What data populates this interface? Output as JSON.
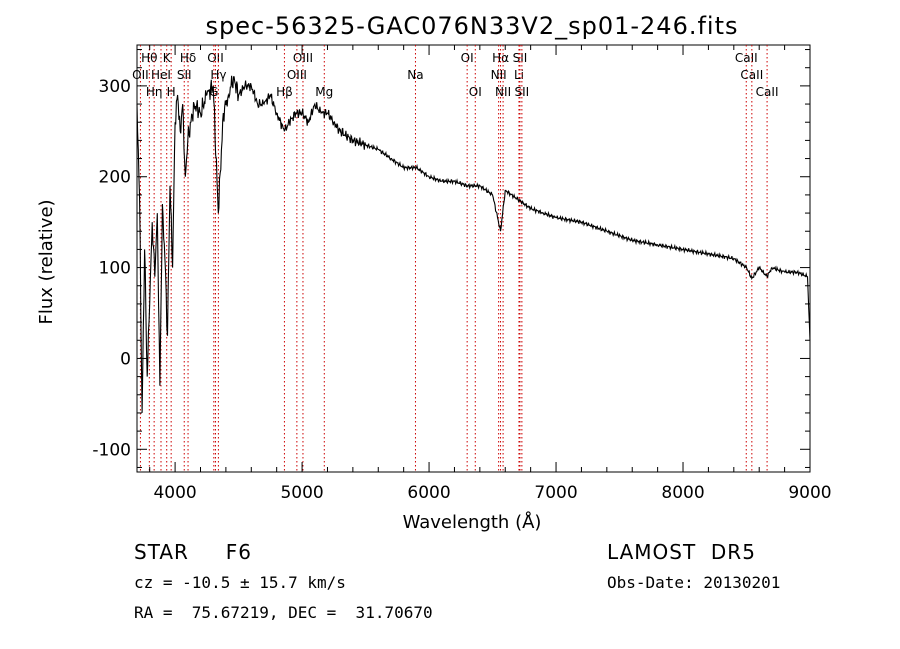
{
  "chart_data": {
    "type": "line",
    "title": "spec-56325-GAC076N33V2_sp01-246.fits",
    "xlabel": "Wavelength (Å)",
    "ylabel": "Flux (relative)",
    "xlim": [
      3700,
      9000
    ],
    "ylim": [
      -125,
      345
    ],
    "xticks": [
      4000,
      5000,
      6000,
      7000,
      8000,
      9000
    ],
    "yticks": [
      -100,
      0,
      100,
      200,
      300
    ],
    "grid": false,
    "spectrum": {
      "x": [
        3700,
        3720,
        3740,
        3760,
        3780,
        3800,
        3820,
        3840,
        3860,
        3880,
        3900,
        3920,
        3940,
        3960,
        3980,
        4000,
        4020,
        4040,
        4060,
        4080,
        4100,
        4150,
        4200,
        4250,
        4300,
        4340,
        4380,
        4420,
        4460,
        4500,
        4550,
        4600,
        4650,
        4700,
        4750,
        4800,
        4861,
        4900,
        4950,
        5000,
        5050,
        5100,
        5150,
        5200,
        5250,
        5300,
        5400,
        5500,
        5600,
        5700,
        5800,
        5900,
        6000,
        6100,
        6200,
        6300,
        6400,
        6500,
        6563,
        6600,
        6700,
        6800,
        6900,
        7000,
        7200,
        7400,
        7600,
        7800,
        8000,
        8200,
        8400,
        8500,
        8542,
        8600,
        8662,
        8700,
        8800,
        8900,
        8980,
        9000
      ],
      "y": [
        280,
        180,
        -60,
        120,
        -20,
        60,
        150,
        90,
        160,
        -30,
        170,
        110,
        25,
        190,
        100,
        260,
        290,
        250,
        280,
        200,
        240,
        280,
        270,
        290,
        300,
        160,
        270,
        290,
        310,
        290,
        300,
        300,
        280,
        280,
        290,
        270,
        250,
        260,
        270,
        270,
        260,
        280,
        270,
        270,
        260,
        250,
        240,
        235,
        230,
        220,
        210,
        210,
        200,
        195,
        195,
        190,
        190,
        180,
        140,
        185,
        175,
        165,
        160,
        155,
        150,
        140,
        130,
        125,
        120,
        115,
        110,
        100,
        88,
        100,
        90,
        100,
        95,
        95,
        90,
        20
      ]
    },
    "lines": [
      {
        "label": "Hθ",
        "x": 3797,
        "row": 1
      },
      {
        "label": "K",
        "x": 3934,
        "row": 1
      },
      {
        "label": "Hδ",
        "x": 4102,
        "row": 1
      },
      {
        "label": "OII",
        "x": 4318,
        "row": 1
      },
      {
        "label": "OIII",
        "x": 5007,
        "row": 1
      },
      {
        "label": "OI",
        "x": 6300,
        "row": 1
      },
      {
        "label": "Hα",
        "x": 6563,
        "row": 1
      },
      {
        "label": "SII",
        "x": 6716,
        "row": 1
      },
      {
        "label": "CaII",
        "x": 8498,
        "row": 1
      },
      {
        "label": "OII",
        "x": 3727,
        "row": 2
      },
      {
        "label": "HeI",
        "x": 3889,
        "row": 2
      },
      {
        "label": "SII",
        "x": 4072,
        "row": 2
      },
      {
        "label": "Hγ",
        "x": 4341,
        "row": 2
      },
      {
        "label": "OIII",
        "x": 4959,
        "row": 2
      },
      {
        "label": "Na",
        "x": 5893,
        "row": 2
      },
      {
        "label": "NII",
        "x": 6548,
        "row": 2
      },
      {
        "label": "Li",
        "x": 6708,
        "row": 2
      },
      {
        "label": "CaII",
        "x": 8542,
        "row": 2
      },
      {
        "label": "Hη",
        "x": 3835,
        "row": 3
      },
      {
        "label": "H",
        "x": 3969,
        "row": 3
      },
      {
        "label": "G",
        "x": 4305,
        "row": 3
      },
      {
        "label": "Hβ",
        "x": 4861,
        "row": 3
      },
      {
        "label": "Mg",
        "x": 5175,
        "row": 3
      },
      {
        "label": "OI",
        "x": 6364,
        "row": 3
      },
      {
        "label": "NII",
        "x": 6583,
        "row": 3
      },
      {
        "label": "SII",
        "x": 6731,
        "row": 3
      },
      {
        "label": "CaII",
        "x": 8662,
        "row": 3
      }
    ]
  },
  "info": {
    "class_line": "STAR     F6",
    "survey": "LAMOST  DR5",
    "cz_line": "cz = -10.5 ± 15.7 km/s",
    "obs_date": "Obs-Date: 20130201",
    "radec": "RA =  75.67219, DEC =  31.70670"
  }
}
